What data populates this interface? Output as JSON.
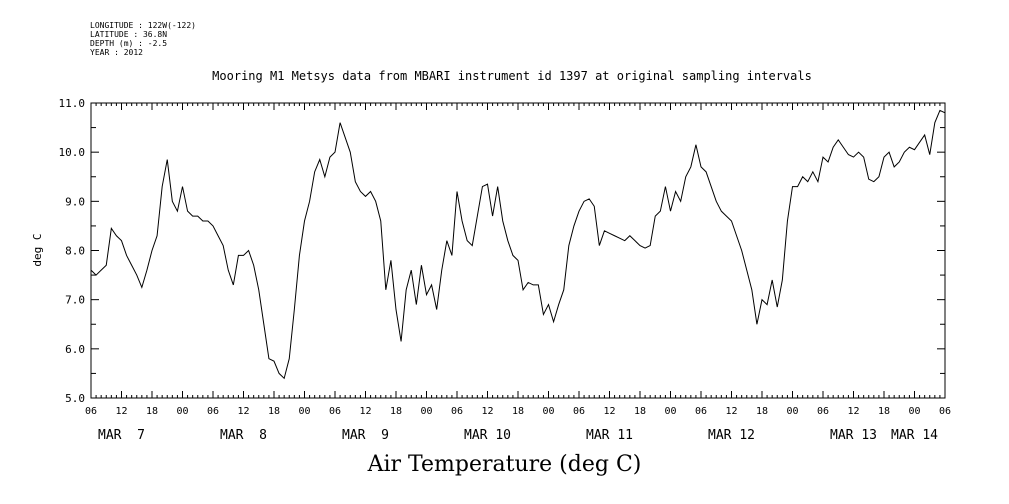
{
  "header": {
    "meta_lines": [
      "LONGITUDE : 122W(-122)",
      "LATITUDE : 36.8N",
      "DEPTH (m) : -2.5",
      "YEAR : 2012"
    ]
  },
  "footer": {
    "title": "Air Temperature (deg C)"
  },
  "chart_data": {
    "type": "line",
    "title": "Mooring M1 Metsys data from MBARI instrument id 1397 at original sampling intervals",
    "xlabel": "",
    "ylabel": "deg C",
    "ylim": [
      5.0,
      11.0
    ],
    "yticks": [
      "5.0",
      "6.0",
      "7.0",
      "8.0",
      "9.0",
      "10.0",
      "11.0"
    ],
    "xlim": [
      "2012-03-07T06:00",
      "2012-03-14T06:00"
    ],
    "xtick_hours": [
      "06",
      "12",
      "18",
      "00",
      "06",
      "12",
      "18",
      "00",
      "06",
      "12",
      "18",
      "00",
      "06",
      "12",
      "18",
      "00",
      "06",
      "12",
      "18",
      "00",
      "06",
      "12",
      "18",
      "00",
      "06",
      "12",
      "18",
      "00",
      "06"
    ],
    "xtick_days": [
      {
        "label": "MAR  7",
        "date": "2012-03-07T12:00"
      },
      {
        "label": "MAR  8",
        "date": "2012-03-08T12:00"
      },
      {
        "label": "MAR  9",
        "date": "2012-03-09T12:00"
      },
      {
        "label": "MAR 10",
        "date": "2012-03-10T12:00"
      },
      {
        "label": "MAR 11",
        "date": "2012-03-11T12:00"
      },
      {
        "label": "MAR 12",
        "date": "2012-03-12T12:00"
      },
      {
        "label": "MAR 13",
        "date": "2012-03-13T12:00"
      },
      {
        "label": "MAR 14",
        "date": "2012-03-14T00:00"
      }
    ],
    "grid": false,
    "series": [
      {
        "color": "#000000",
        "points": [
          [
            "2012-03-07T06:00",
            7.6
          ],
          [
            "2012-03-07T07:00",
            7.5
          ],
          [
            "2012-03-07T08:00",
            7.6
          ],
          [
            "2012-03-07T09:00",
            7.7
          ],
          [
            "2012-03-07T10:00",
            8.45
          ],
          [
            "2012-03-07T11:00",
            8.3
          ],
          [
            "2012-03-07T12:00",
            8.2
          ],
          [
            "2012-03-07T13:00",
            7.9
          ],
          [
            "2012-03-07T14:00",
            7.7
          ],
          [
            "2012-03-07T15:00",
            7.5
          ],
          [
            "2012-03-07T16:00",
            7.25
          ],
          [
            "2012-03-07T17:00",
            7.6
          ],
          [
            "2012-03-07T18:00",
            8.0
          ],
          [
            "2012-03-07T19:00",
            8.3
          ],
          [
            "2012-03-07T20:00",
            9.3
          ],
          [
            "2012-03-07T21:00",
            9.85
          ],
          [
            "2012-03-07T22:00",
            9.0
          ],
          [
            "2012-03-07T23:00",
            8.8
          ],
          [
            "2012-03-08T00:00",
            9.3
          ],
          [
            "2012-03-08T01:00",
            8.8
          ],
          [
            "2012-03-08T02:00",
            8.7
          ],
          [
            "2012-03-08T03:00",
            8.7
          ],
          [
            "2012-03-08T04:00",
            8.6
          ],
          [
            "2012-03-08T05:00",
            8.6
          ],
          [
            "2012-03-08T06:00",
            8.5
          ],
          [
            "2012-03-08T07:00",
            8.3
          ],
          [
            "2012-03-08T08:00",
            8.1
          ],
          [
            "2012-03-08T09:00",
            7.6
          ],
          [
            "2012-03-08T10:00",
            7.3
          ],
          [
            "2012-03-08T11:00",
            7.9
          ],
          [
            "2012-03-08T12:00",
            7.9
          ],
          [
            "2012-03-08T13:00",
            8.0
          ],
          [
            "2012-03-08T14:00",
            7.7
          ],
          [
            "2012-03-08T15:00",
            7.2
          ],
          [
            "2012-03-08T16:00",
            6.5
          ],
          [
            "2012-03-08T17:00",
            5.8
          ],
          [
            "2012-03-08T18:00",
            5.75
          ],
          [
            "2012-03-08T19:00",
            5.5
          ],
          [
            "2012-03-08T20:00",
            5.4
          ],
          [
            "2012-03-08T21:00",
            5.8
          ],
          [
            "2012-03-08T22:00",
            6.8
          ],
          [
            "2012-03-08T23:00",
            7.9
          ],
          [
            "2012-03-09T00:00",
            8.6
          ],
          [
            "2012-03-09T01:00",
            9.0
          ],
          [
            "2012-03-09T02:00",
            9.6
          ],
          [
            "2012-03-09T03:00",
            9.85
          ],
          [
            "2012-03-09T04:00",
            9.5
          ],
          [
            "2012-03-09T05:00",
            9.9
          ],
          [
            "2012-03-09T06:00",
            10.0
          ],
          [
            "2012-03-09T07:00",
            10.6
          ],
          [
            "2012-03-09T08:00",
            10.3
          ],
          [
            "2012-03-09T09:00",
            10.0
          ],
          [
            "2012-03-09T10:00",
            9.4
          ],
          [
            "2012-03-09T11:00",
            9.2
          ],
          [
            "2012-03-09T12:00",
            9.1
          ],
          [
            "2012-03-09T13:00",
            9.2
          ],
          [
            "2012-03-09T14:00",
            9.0
          ],
          [
            "2012-03-09T15:00",
            8.6
          ],
          [
            "2012-03-09T16:00",
            7.2
          ],
          [
            "2012-03-09T17:00",
            7.8
          ],
          [
            "2012-03-09T18:00",
            6.8
          ],
          [
            "2012-03-09T19:00",
            6.15
          ],
          [
            "2012-03-09T20:00",
            7.2
          ],
          [
            "2012-03-09T21:00",
            7.6
          ],
          [
            "2012-03-09T22:00",
            6.9
          ],
          [
            "2012-03-09T23:00",
            7.7
          ],
          [
            "2012-03-10T00:00",
            7.1
          ],
          [
            "2012-03-10T01:00",
            7.3
          ],
          [
            "2012-03-10T02:00",
            6.8
          ],
          [
            "2012-03-10T03:00",
            7.6
          ],
          [
            "2012-03-10T04:00",
            8.2
          ],
          [
            "2012-03-10T05:00",
            7.9
          ],
          [
            "2012-03-10T06:00",
            9.2
          ],
          [
            "2012-03-10T07:00",
            8.6
          ],
          [
            "2012-03-10T08:00",
            8.2
          ],
          [
            "2012-03-10T09:00",
            8.1
          ],
          [
            "2012-03-10T10:00",
            8.7
          ],
          [
            "2012-03-10T11:00",
            9.3
          ],
          [
            "2012-03-10T12:00",
            9.35
          ],
          [
            "2012-03-10T13:00",
            8.7
          ],
          [
            "2012-03-10T14:00",
            9.3
          ],
          [
            "2012-03-10T15:00",
            8.6
          ],
          [
            "2012-03-10T16:00",
            8.2
          ],
          [
            "2012-03-10T17:00",
            7.9
          ],
          [
            "2012-03-10T18:00",
            7.8
          ],
          [
            "2012-03-10T19:00",
            7.2
          ],
          [
            "2012-03-10T20:00",
            7.35
          ],
          [
            "2012-03-10T21:00",
            7.3
          ],
          [
            "2012-03-10T22:00",
            7.3
          ],
          [
            "2012-03-10T23:00",
            6.7
          ],
          [
            "2012-03-11T00:00",
            6.9
          ],
          [
            "2012-03-11T01:00",
            6.55
          ],
          [
            "2012-03-11T02:00",
            6.9
          ],
          [
            "2012-03-11T03:00",
            7.2
          ],
          [
            "2012-03-11T04:00",
            8.1
          ],
          [
            "2012-03-11T05:00",
            8.5
          ],
          [
            "2012-03-11T06:00",
            8.8
          ],
          [
            "2012-03-11T07:00",
            9.0
          ],
          [
            "2012-03-11T08:00",
            9.05
          ],
          [
            "2012-03-11T09:00",
            8.9
          ],
          [
            "2012-03-11T10:00",
            8.1
          ],
          [
            "2012-03-11T11:00",
            8.4
          ],
          [
            "2012-03-11T12:00",
            8.35
          ],
          [
            "2012-03-11T13:00",
            8.3
          ],
          [
            "2012-03-11T14:00",
            8.25
          ],
          [
            "2012-03-11T15:00",
            8.2
          ],
          [
            "2012-03-11T16:00",
            8.3
          ],
          [
            "2012-03-11T17:00",
            8.2
          ],
          [
            "2012-03-11T18:00",
            8.1
          ],
          [
            "2012-03-11T19:00",
            8.05
          ],
          [
            "2012-03-11T20:00",
            8.1
          ],
          [
            "2012-03-11T21:00",
            8.7
          ],
          [
            "2012-03-11T22:00",
            8.8
          ],
          [
            "2012-03-11T23:00",
            9.3
          ],
          [
            "2012-03-12T00:00",
            8.8
          ],
          [
            "2012-03-12T01:00",
            9.2
          ],
          [
            "2012-03-12T02:00",
            9.0
          ],
          [
            "2012-03-12T03:00",
            9.5
          ],
          [
            "2012-03-12T04:00",
            9.7
          ],
          [
            "2012-03-12T05:00",
            10.15
          ],
          [
            "2012-03-12T06:00",
            9.7
          ],
          [
            "2012-03-12T07:00",
            9.6
          ],
          [
            "2012-03-12T08:00",
            9.3
          ],
          [
            "2012-03-12T09:00",
            9.0
          ],
          [
            "2012-03-12T10:00",
            8.8
          ],
          [
            "2012-03-12T11:00",
            8.7
          ],
          [
            "2012-03-12T12:00",
            8.6
          ],
          [
            "2012-03-12T13:00",
            8.3
          ],
          [
            "2012-03-12T14:00",
            8.0
          ],
          [
            "2012-03-12T15:00",
            7.6
          ],
          [
            "2012-03-12T16:00",
            7.2
          ],
          [
            "2012-03-12T17:00",
            6.5
          ],
          [
            "2012-03-12T18:00",
            7.0
          ],
          [
            "2012-03-12T19:00",
            6.9
          ],
          [
            "2012-03-12T20:00",
            7.4
          ],
          [
            "2012-03-12T21:00",
            6.85
          ],
          [
            "2012-03-12T22:00",
            7.4
          ],
          [
            "2012-03-12T23:00",
            8.6
          ],
          [
            "2012-03-13T00:00",
            9.3
          ],
          [
            "2012-03-13T01:00",
            9.3
          ],
          [
            "2012-03-13T02:00",
            9.5
          ],
          [
            "2012-03-13T03:00",
            9.4
          ],
          [
            "2012-03-13T04:00",
            9.6
          ],
          [
            "2012-03-13T05:00",
            9.4
          ],
          [
            "2012-03-13T06:00",
            9.9
          ],
          [
            "2012-03-13T07:00",
            9.8
          ],
          [
            "2012-03-13T08:00",
            10.1
          ],
          [
            "2012-03-13T09:00",
            10.25
          ],
          [
            "2012-03-13T10:00",
            10.1
          ],
          [
            "2012-03-13T11:00",
            9.95
          ],
          [
            "2012-03-13T12:00",
            9.9
          ],
          [
            "2012-03-13T13:00",
            10.0
          ],
          [
            "2012-03-13T14:00",
            9.9
          ],
          [
            "2012-03-13T15:00",
            9.45
          ],
          [
            "2012-03-13T16:00",
            9.4
          ],
          [
            "2012-03-13T17:00",
            9.5
          ],
          [
            "2012-03-13T18:00",
            9.9
          ],
          [
            "2012-03-13T19:00",
            10.0
          ],
          [
            "2012-03-13T20:00",
            9.7
          ],
          [
            "2012-03-13T21:00",
            9.8
          ],
          [
            "2012-03-13T22:00",
            10.0
          ],
          [
            "2012-03-13T23:00",
            10.1
          ],
          [
            "2012-03-14T00:00",
            10.05
          ],
          [
            "2012-03-14T01:00",
            10.2
          ],
          [
            "2012-03-14T02:00",
            10.35
          ],
          [
            "2012-03-14T03:00",
            9.95
          ],
          [
            "2012-03-14T04:00",
            10.6
          ],
          [
            "2012-03-14T05:00",
            10.85
          ],
          [
            "2012-03-14T06:00",
            10.8
          ]
        ]
      }
    ]
  }
}
